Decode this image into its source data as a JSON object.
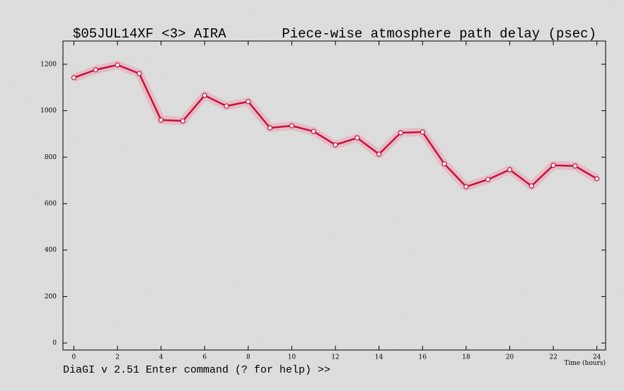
{
  "chart_data": {
    "type": "line",
    "title": "$05JUL14XF <3>  AIRA",
    "subtitle": "Piece-wise atmosphere path delay (psec)",
    "x_label": "Time (hours)",
    "footer": "DiaGI v 2.51  Enter command (? for help) >>",
    "x": [
      0,
      1,
      2,
      3,
      4,
      5,
      6,
      7,
      8,
      9,
      10,
      11,
      12,
      13,
      14,
      15,
      16,
      17,
      18,
      19,
      20,
      21,
      22,
      23,
      24
    ],
    "series": [
      {
        "name": "Piece-wise atmosphere path delay",
        "color": "#c8103c",
        "values": [
          1142,
          1176,
          1197,
          1160,
          960,
          956,
          1066,
          1020,
          1039,
          926,
          935,
          911,
          853,
          883,
          813,
          905,
          908,
          771,
          673,
          704,
          746,
          676,
          765,
          762,
          707
        ]
      }
    ],
    "xlim": [
      -0.5,
      24.4
    ],
    "ylim": [
      -30,
      1300
    ],
    "xticks": [
      0,
      2,
      4,
      6,
      8,
      10,
      12,
      14,
      16,
      18,
      20,
      22,
      24
    ],
    "yticks": [
      0,
      200,
      400,
      600,
      800,
      1000,
      1200
    ]
  }
}
